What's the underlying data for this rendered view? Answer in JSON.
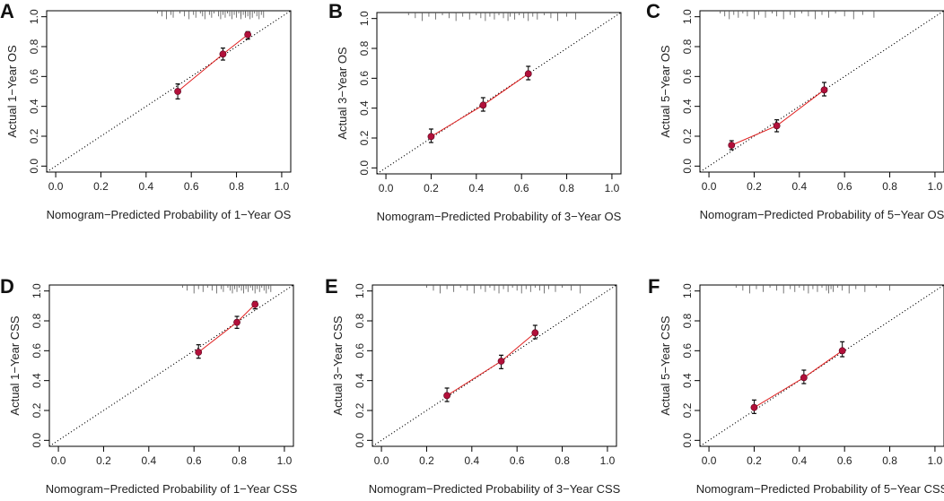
{
  "colors": {
    "point": "#b2103a",
    "line": "#e02020",
    "errorbar": "#000000",
    "diagonal": "#000000",
    "frame": "#000000"
  },
  "chart_data": [
    {
      "type": "scatter",
      "panel": "A",
      "xlabel": "Nomogram−Predicted Probability of 1−Year OS",
      "ylabel": "Actual 1−Year OS",
      "xlim": [
        0.0,
        1.0
      ],
      "ylim": [
        0.0,
        1.0
      ],
      "xticks": [
        "0.0",
        "0.2",
        "0.4",
        "0.6",
        "0.8",
        "1.0"
      ],
      "yticks": [
        "0.0",
        "0.2",
        "0.4",
        "0.6",
        "0.8",
        "1.0"
      ],
      "reference_line": "ideal diagonal y = x (dotted)",
      "points": [
        {
          "x": 0.54,
          "y": 0.5,
          "lo": 0.45,
          "hi": 0.55
        },
        {
          "x": 0.74,
          "y": 0.75,
          "lo": 0.71,
          "hi": 0.79
        },
        {
          "x": 0.85,
          "y": 0.88,
          "lo": 0.85,
          "hi": 0.9
        }
      ],
      "rug": [
        0.45,
        0.47,
        0.49,
        0.51,
        0.52,
        0.55,
        0.57,
        0.59,
        0.61,
        0.62,
        0.64,
        0.65,
        0.66,
        0.68,
        0.69,
        0.7,
        0.72,
        0.73,
        0.74,
        0.75,
        0.76,
        0.77,
        0.78,
        0.79,
        0.8,
        0.81,
        0.82,
        0.82,
        0.83,
        0.84,
        0.84,
        0.85,
        0.86,
        0.86,
        0.87,
        0.88,
        0.89,
        0.9,
        0.91,
        0.92
      ]
    },
    {
      "type": "scatter",
      "panel": "B",
      "xlabel": "Nomogram−Predicted Probability of 3−Year OS",
      "ylabel": "Actual 3−Year OS",
      "xlim": [
        0.0,
        1.0
      ],
      "ylim": [
        0.0,
        1.0
      ],
      "xticks": [
        "0.0",
        "0.2",
        "0.4",
        "0.6",
        "0.8",
        "1.0"
      ],
      "yticks": [
        "0.0",
        "0.2",
        "0.4",
        "0.6",
        "0.8",
        "1.0"
      ],
      "reference_line": "ideal diagonal y = x (dotted)",
      "points": [
        {
          "x": 0.2,
          "y": 0.21,
          "lo": 0.17,
          "hi": 0.26
        },
        {
          "x": 0.43,
          "y": 0.42,
          "lo": 0.38,
          "hi": 0.47
        },
        {
          "x": 0.63,
          "y": 0.63,
          "lo": 0.59,
          "hi": 0.68
        }
      ],
      "rug": [
        0.1,
        0.13,
        0.16,
        0.19,
        0.22,
        0.25,
        0.28,
        0.31,
        0.34,
        0.37,
        0.4,
        0.42,
        0.44,
        0.46,
        0.48,
        0.5,
        0.52,
        0.54,
        0.55,
        0.57,
        0.59,
        0.61,
        0.63,
        0.65,
        0.67,
        0.7,
        0.73,
        0.76,
        0.8,
        0.84
      ]
    },
    {
      "type": "scatter",
      "panel": "C",
      "xlabel": "Nomogram−Predicted Probability of 5−Year OS",
      "ylabel": "Actual 5−Year OS",
      "xlim": [
        0.0,
        1.0
      ],
      "ylim": [
        0.0,
        1.0
      ],
      "xticks": [
        "0.0",
        "0.2",
        "0.4",
        "0.6",
        "0.8",
        "1.0"
      ],
      "yticks": [
        "0.0",
        "0.2",
        "0.4",
        "0.6",
        "0.8",
        "1.0"
      ],
      "reference_line": "ideal diagonal y = x (dotted)",
      "points": [
        {
          "x": 0.1,
          "y": 0.14,
          "lo": 0.11,
          "hi": 0.17
        },
        {
          "x": 0.3,
          "y": 0.27,
          "lo": 0.23,
          "hi": 0.31
        },
        {
          "x": 0.51,
          "y": 0.51,
          "lo": 0.47,
          "hi": 0.56
        }
      ],
      "rug": [
        0.05,
        0.07,
        0.09,
        0.11,
        0.13,
        0.15,
        0.17,
        0.2,
        0.22,
        0.25,
        0.28,
        0.3,
        0.33,
        0.36,
        0.38,
        0.41,
        0.44,
        0.47,
        0.5,
        0.53,
        0.56,
        0.6,
        0.64,
        0.68,
        0.73
      ]
    },
    {
      "type": "scatter",
      "panel": "D",
      "xlabel": "Nomogram−Predicted Probability of 1−Year CSS",
      "ylabel": "Actual 1−Year CSS",
      "xlim": [
        0.0,
        1.0
      ],
      "ylim": [
        0.0,
        1.0
      ],
      "xticks": [
        "0.0",
        "0.2",
        "0.4",
        "0.6",
        "0.8",
        "1.0"
      ],
      "yticks": [
        "0.0",
        "0.2",
        "0.4",
        "0.6",
        "0.8",
        "1.0"
      ],
      "reference_line": "ideal diagonal y = x (dotted)",
      "points": [
        {
          "x": 0.62,
          "y": 0.59,
          "lo": 0.55,
          "hi": 0.64
        },
        {
          "x": 0.79,
          "y": 0.79,
          "lo": 0.75,
          "hi": 0.83
        },
        {
          "x": 0.87,
          "y": 0.91,
          "lo": 0.88,
          "hi": 0.93
        }
      ],
      "rug": [
        0.55,
        0.57,
        0.6,
        0.62,
        0.64,
        0.66,
        0.68,
        0.7,
        0.72,
        0.73,
        0.75,
        0.76,
        0.77,
        0.78,
        0.79,
        0.8,
        0.81,
        0.82,
        0.83,
        0.84,
        0.85,
        0.86,
        0.87,
        0.88,
        0.89,
        0.9,
        0.91,
        0.92,
        0.93,
        0.94
      ]
    },
    {
      "type": "scatter",
      "panel": "E",
      "xlabel": "Nomogram−Predicted Probability of 3−Year CSS",
      "ylabel": "Actual 3−Year CSS",
      "xlim": [
        0.0,
        1.0
      ],
      "ylim": [
        0.0,
        1.0
      ],
      "xticks": [
        "0.0",
        "0.2",
        "0.4",
        "0.6",
        "0.8",
        "1.0"
      ],
      "yticks": [
        "0.0",
        "0.2",
        "0.4",
        "0.6",
        "0.8",
        "1.0"
      ],
      "reference_line": "ideal diagonal y = x (dotted)",
      "points": [
        {
          "x": 0.29,
          "y": 0.3,
          "lo": 0.26,
          "hi": 0.35
        },
        {
          "x": 0.53,
          "y": 0.53,
          "lo": 0.48,
          "hi": 0.57
        },
        {
          "x": 0.68,
          "y": 0.72,
          "lo": 0.68,
          "hi": 0.77
        }
      ],
      "rug": [
        0.2,
        0.23,
        0.26,
        0.29,
        0.32,
        0.35,
        0.38,
        0.41,
        0.44,
        0.46,
        0.48,
        0.5,
        0.52,
        0.54,
        0.56,
        0.58,
        0.6,
        0.62,
        0.64,
        0.66,
        0.68,
        0.7,
        0.72,
        0.74,
        0.77,
        0.8,
        0.84,
        0.88
      ]
    },
    {
      "type": "scatter",
      "panel": "F",
      "xlabel": "Nomogram−Predicted Probability of 5−Year CSS",
      "ylabel": "Actual 5−Year CSS",
      "xlim": [
        0.0,
        1.0
      ],
      "ylim": [
        0.0,
        1.0
      ],
      "xticks": [
        "0.0",
        "0.2",
        "0.4",
        "0.6",
        "0.8",
        "1.0"
      ],
      "yticks": [
        "0.0",
        "0.2",
        "0.4",
        "0.6",
        "0.8",
        "1.0"
      ],
      "reference_line": "ideal diagonal y = x (dotted)",
      "points": [
        {
          "x": 0.2,
          "y": 0.22,
          "lo": 0.18,
          "hi": 0.27
        },
        {
          "x": 0.42,
          "y": 0.42,
          "lo": 0.38,
          "hi": 0.47
        },
        {
          "x": 0.59,
          "y": 0.6,
          "lo": 0.56,
          "hi": 0.66
        }
      ],
      "rug": [
        0.12,
        0.15,
        0.18,
        0.21,
        0.24,
        0.27,
        0.3,
        0.33,
        0.36,
        0.38,
        0.4,
        0.42,
        0.44,
        0.46,
        0.48,
        0.5,
        0.52,
        0.53,
        0.54,
        0.55,
        0.57,
        0.59,
        0.62,
        0.65,
        0.69,
        0.74,
        0.8
      ]
    }
  ]
}
